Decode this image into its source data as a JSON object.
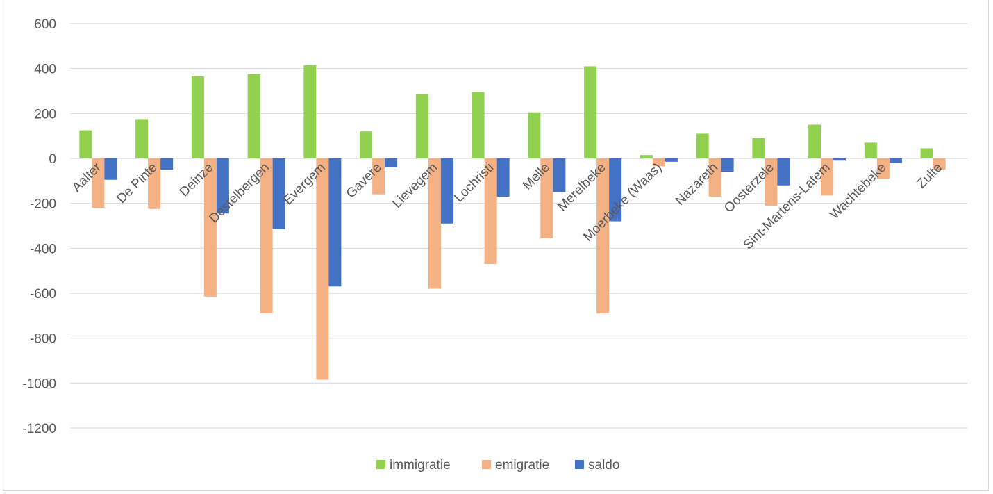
{
  "chart_data": {
    "type": "bar",
    "title": "",
    "xlabel": "",
    "ylabel": "",
    "ylim": [
      -1200,
      600
    ],
    "yticks": [
      600,
      400,
      200,
      0,
      -200,
      -400,
      -600,
      -800,
      -1000,
      -1200
    ],
    "grid": true,
    "legend_position": "bottom",
    "categories": [
      "Aalter",
      "De Pinte",
      "Deinze",
      "Destelbergen",
      "Evergem",
      "Gavere",
      "Lievegem",
      "Lochristi",
      "Melle",
      "Merelbeke",
      "Moerbeke (Waas)",
      "Nazareth",
      "Oosterzele",
      "Sint-Martens-Latem",
      "Wachtebeke",
      "Zulte"
    ],
    "series": [
      {
        "name": "immigratie",
        "color": "#92d050",
        "values": [
          125,
          175,
          365,
          375,
          415,
          120,
          285,
          295,
          205,
          410,
          15,
          110,
          90,
          150,
          70,
          45
        ]
      },
      {
        "name": "emigratie",
        "color": "#f4b183",
        "values": [
          -220,
          -225,
          -615,
          -690,
          -985,
          -160,
          -580,
          -470,
          -355,
          -690,
          -35,
          -170,
          -210,
          -165,
          -90,
          -50
        ]
      },
      {
        "name": "saldo",
        "color": "#4472c4",
        "values": [
          -95,
          -50,
          -245,
          -315,
          -570,
          -40,
          -290,
          -170,
          -150,
          -280,
          -15,
          -60,
          -120,
          -10,
          -20,
          0
        ]
      }
    ]
  }
}
